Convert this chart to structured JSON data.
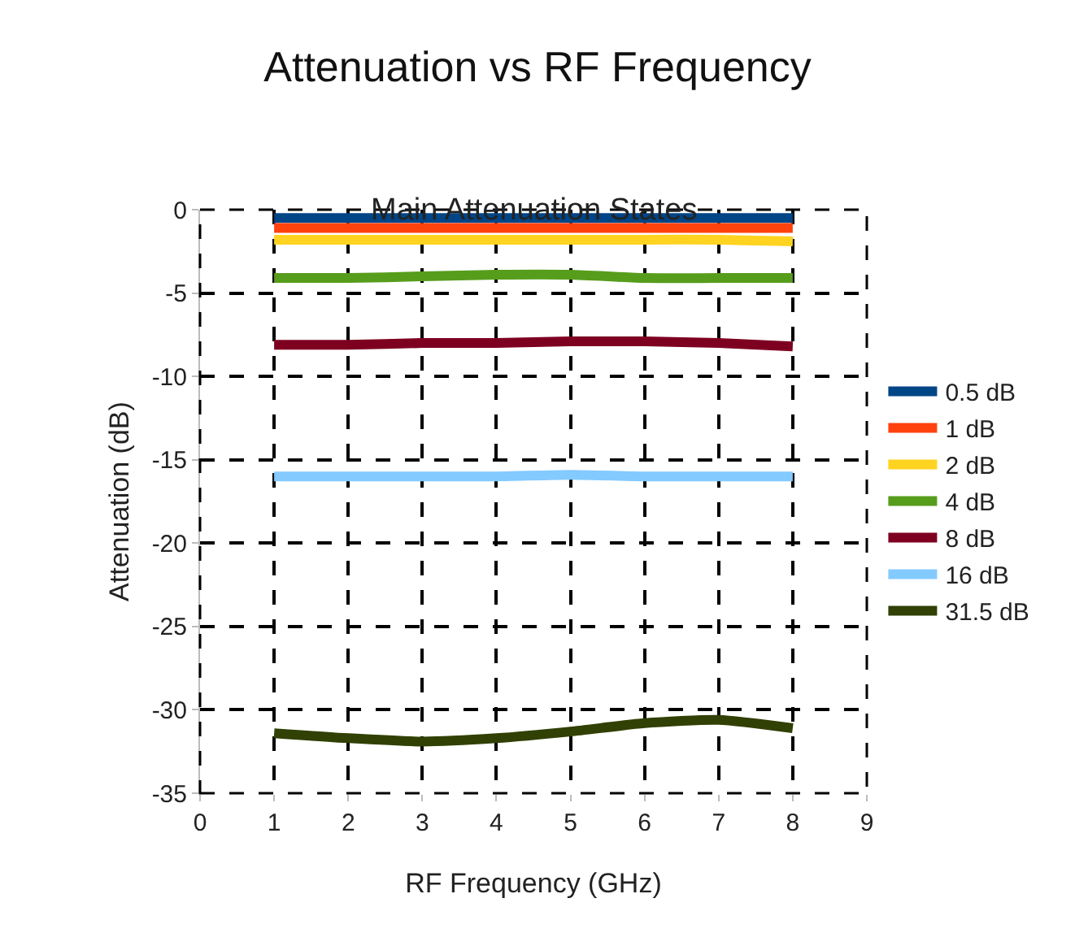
{
  "chart_data": {
    "type": "line",
    "title": "Attenuation vs RF Frequency",
    "subtitle": "Main Attenuation States",
    "xlabel": "RF Frequency (GHz)",
    "ylabel": "Attenuation (dB)",
    "x": [
      1,
      2,
      3,
      4,
      5,
      6,
      7,
      8
    ],
    "series": [
      {
        "name": "0.5 dB",
        "color": "#004586",
        "values": [
          -0.5,
          -0.5,
          -0.5,
          -0.5,
          -0.5,
          -0.5,
          -0.5,
          -0.5
        ]
      },
      {
        "name": "1 dB",
        "color": "#ff420e",
        "values": [
          -1.1,
          -1.1,
          -1.1,
          -1.1,
          -1.1,
          -1.1,
          -1.1,
          -1.1
        ]
      },
      {
        "name": "2 dB",
        "color": "#ffd320",
        "values": [
          -1.8,
          -1.8,
          -1.8,
          -1.8,
          -1.8,
          -1.8,
          -1.8,
          -1.9
        ]
      },
      {
        "name": "4 dB",
        "color": "#579d1c",
        "values": [
          -4.1,
          -4.1,
          -4.0,
          -3.9,
          -3.9,
          -4.1,
          -4.1,
          -4.1
        ]
      },
      {
        "name": "8 dB",
        "color": "#7e0021",
        "values": [
          -8.1,
          -8.1,
          -8.0,
          -8.0,
          -7.9,
          -7.9,
          -8.0,
          -8.2
        ]
      },
      {
        "name": "16 dB",
        "color": "#83caff",
        "values": [
          -16.0,
          -16.0,
          -16.0,
          -16.0,
          -15.9,
          -16.0,
          -16.0,
          -16.0
        ]
      },
      {
        "name": "31.5 dB",
        "color": "#314004",
        "values": [
          -31.4,
          -31.7,
          -31.9,
          -31.7,
          -31.3,
          -30.8,
          -30.6,
          -31.1
        ]
      }
    ],
    "xlim": [
      0,
      9
    ],
    "xticks": [
      0,
      1,
      2,
      3,
      4,
      5,
      6,
      7,
      8,
      9
    ],
    "ylim": [
      -35,
      0
    ],
    "yticks": [
      -35,
      -30,
      -25,
      -20,
      -15,
      -10,
      -5,
      0
    ],
    "grid": true,
    "legend": "right",
    "marker": "none",
    "line_style": "solid"
  }
}
